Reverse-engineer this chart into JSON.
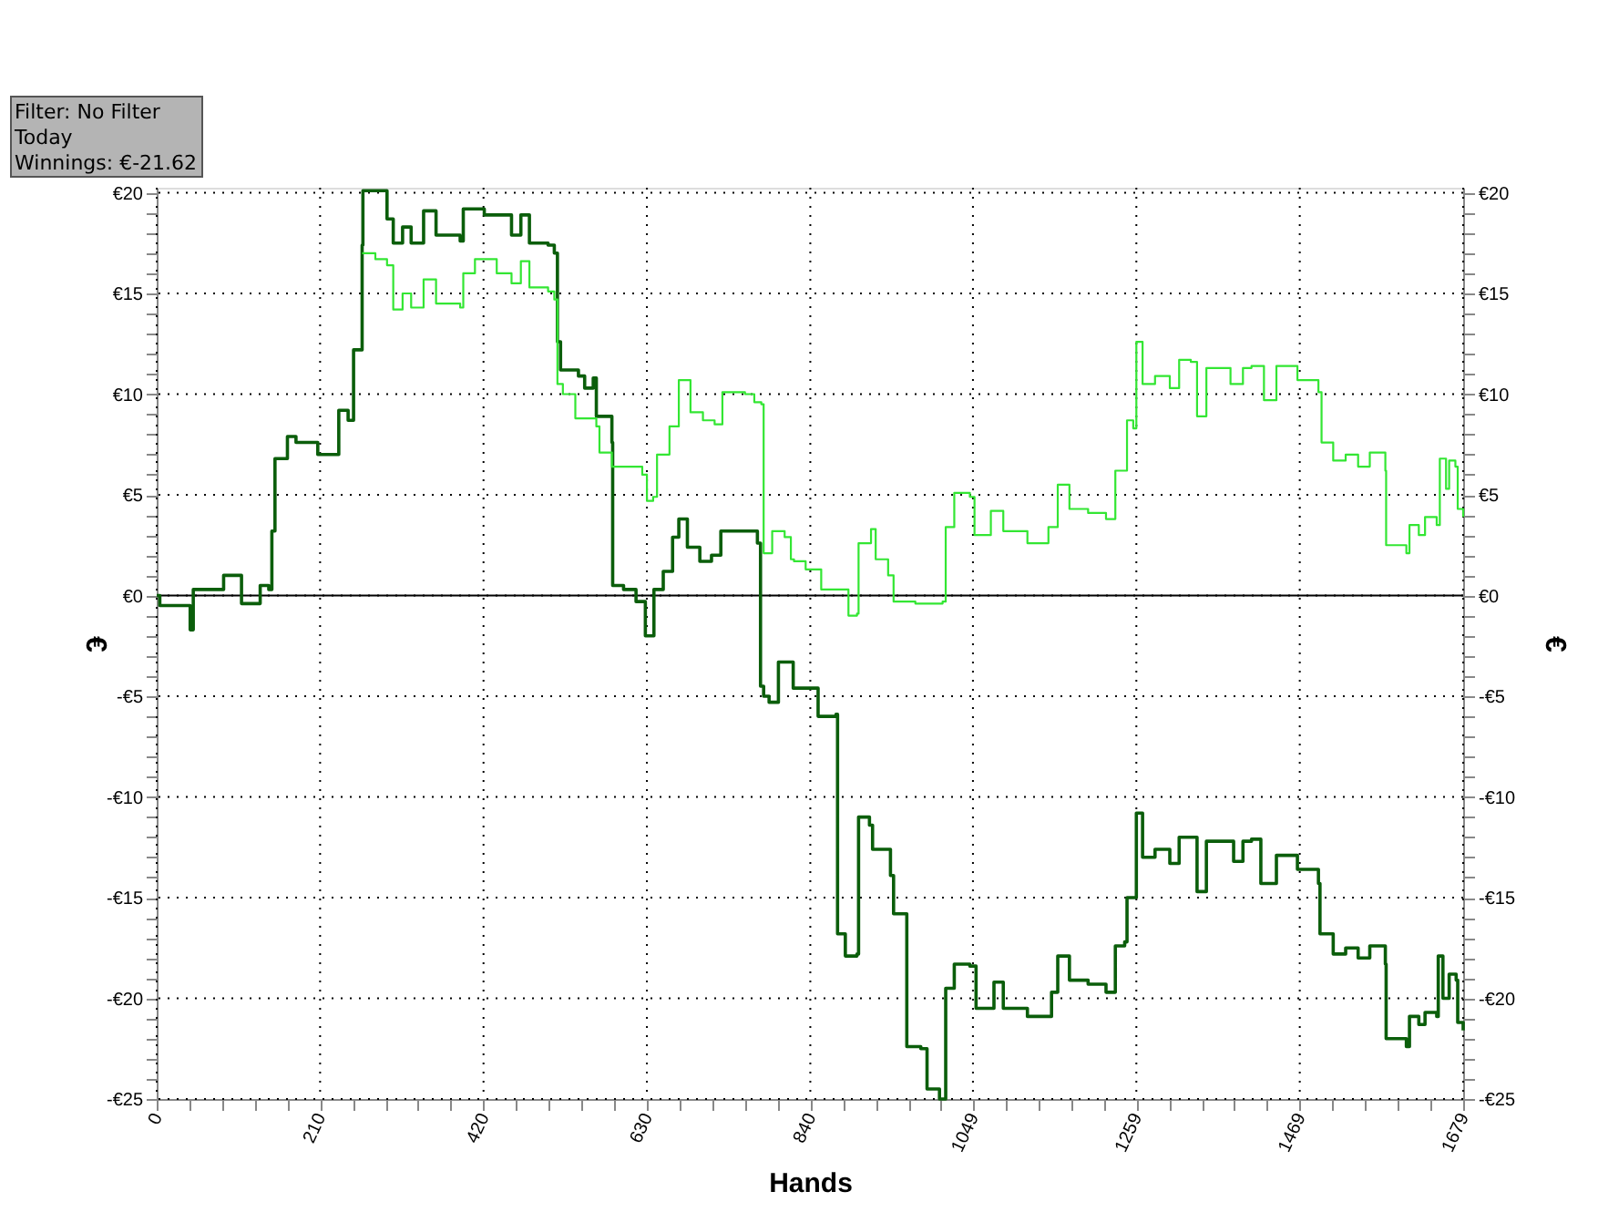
{
  "chart_data": {
    "type": "step",
    "xlabel": "Hands",
    "ylabel": "€",
    "y2label": "€",
    "annotations": [
      "Filter: No Filter",
      "Today",
      "Winnings: €-21.62"
    ],
    "xlim": [
      0,
      1679
    ],
    "ylim": [
      -25,
      20.25
    ],
    "y2lim": [
      -25,
      20.25
    ],
    "xticks": [
      0,
      {
        "value": 42,
        "label": null
      },
      {
        "value": 84,
        "label": null
      },
      {
        "value": 126,
        "label": null
      },
      {
        "value": 168,
        "label": null
      },
      210,
      {
        "value": 252,
        "label": null
      },
      {
        "value": 294,
        "label": null
      },
      {
        "value": 336,
        "label": null
      },
      {
        "value": 378,
        "label": null
      },
      420,
      {
        "value": 462,
        "label": null
      },
      {
        "value": 504,
        "label": null
      },
      {
        "value": 546,
        "label": null
      },
      {
        "value": 588,
        "label": null
      },
      630,
      {
        "value": 672,
        "label": null
      },
      {
        "value": 714,
        "label": null
      },
      {
        "value": 756,
        "label": null
      },
      {
        "value": 798,
        "label": null
      },
      840,
      {
        "value": 882,
        "label": null
      },
      {
        "value": 924,
        "label": null
      },
      {
        "value": 966,
        "label": null
      },
      {
        "value": 1007,
        "label": null
      },
      1049,
      {
        "value": 1091,
        "label": null
      },
      {
        "value": 1133,
        "label": null
      },
      {
        "value": 1175,
        "label": null
      },
      {
        "value": 1217,
        "label": null
      },
      1259,
      {
        "value": 1301,
        "label": null
      },
      {
        "value": 1343,
        "label": null
      },
      {
        "value": 1385,
        "label": null
      },
      {
        "value": 1427,
        "label": null
      },
      1469,
      {
        "value": 1511,
        "label": null
      },
      {
        "value": 1553,
        "label": null
      },
      {
        "value": 1595,
        "label": null
      },
      {
        "value": 1637,
        "label": null
      },
      1679
    ],
    "yticks": [
      {
        "value": -25,
        "label": "-€25"
      },
      {
        "value": -24,
        "label": null
      },
      {
        "value": -23,
        "label": null
      },
      {
        "value": -22,
        "label": null
      },
      {
        "value": -21,
        "label": null
      },
      {
        "value": -20,
        "label": "-€20"
      },
      {
        "value": -19,
        "label": null
      },
      {
        "value": -18,
        "label": null
      },
      {
        "value": -17,
        "label": null
      },
      {
        "value": -16,
        "label": null
      },
      {
        "value": -15,
        "label": "-€15"
      },
      {
        "value": -14,
        "label": null
      },
      {
        "value": -13,
        "label": null
      },
      {
        "value": -12,
        "label": null
      },
      {
        "value": -11,
        "label": null
      },
      {
        "value": -10,
        "label": "-€10"
      },
      {
        "value": -9,
        "label": null
      },
      {
        "value": -8,
        "label": null
      },
      {
        "value": -7,
        "label": null
      },
      {
        "value": -6,
        "label": null
      },
      {
        "value": -5,
        "label": "-€5"
      },
      {
        "value": -4,
        "label": null
      },
      {
        "value": -3,
        "label": null
      },
      {
        "value": -2,
        "label": null
      },
      {
        "value": -1,
        "label": null
      },
      {
        "value": 0,
        "label": "€0"
      },
      {
        "value": 1,
        "label": null
      },
      {
        "value": 2,
        "label": null
      },
      {
        "value": 3,
        "label": null
      },
      {
        "value": 4,
        "label": null
      },
      {
        "value": 5,
        "label": "€5"
      },
      {
        "value": 6,
        "label": null
      },
      {
        "value": 7,
        "label": null
      },
      {
        "value": 8,
        "label": null
      },
      {
        "value": 9,
        "label": null
      },
      {
        "value": 10,
        "label": "€10"
      },
      {
        "value": 11,
        "label": null
      },
      {
        "value": 12,
        "label": null
      },
      {
        "value": 13,
        "label": null
      },
      {
        "value": 14,
        "label": null
      },
      {
        "value": 15,
        "label": "€15"
      },
      {
        "value": 16,
        "label": null
      },
      {
        "value": 17,
        "label": null
      },
      {
        "value": 18,
        "label": null
      },
      {
        "value": 19,
        "label": null
      },
      {
        "value": 20,
        "label": "€20"
      }
    ],
    "y2ticks": [
      {
        "value": -25,
        "label": "-€25"
      },
      {
        "value": -24,
        "label": null
      },
      {
        "value": -23,
        "label": null
      },
      {
        "value": -22,
        "label": null
      },
      {
        "value": -21,
        "label": null
      },
      {
        "value": -20,
        "label": "-€20"
      },
      {
        "value": -19,
        "label": null
      },
      {
        "value": -18,
        "label": null
      },
      {
        "value": -17,
        "label": null
      },
      {
        "value": -16,
        "label": null
      },
      {
        "value": -15,
        "label": "-€15"
      },
      {
        "value": -14,
        "label": null
      },
      {
        "value": -13,
        "label": null
      },
      {
        "value": -12,
        "label": null
      },
      {
        "value": -11,
        "label": null
      },
      {
        "value": -10,
        "label": "-€10"
      },
      {
        "value": -9,
        "label": null
      },
      {
        "value": -8,
        "label": null
      },
      {
        "value": -7,
        "label": null
      },
      {
        "value": -6,
        "label": null
      },
      {
        "value": -5,
        "label": "-€5"
      },
      {
        "value": -4,
        "label": null
      },
      {
        "value": -3,
        "label": null
      },
      {
        "value": -2,
        "label": null
      },
      {
        "value": -1,
        "label": null
      },
      {
        "value": 0,
        "label": "€0"
      },
      {
        "value": 1,
        "label": null
      },
      {
        "value": 2,
        "label": null
      },
      {
        "value": 3,
        "label": null
      },
      {
        "value": 4,
        "label": null
      },
      {
        "value": 5,
        "label": "€5"
      },
      {
        "value": 6,
        "label": null
      },
      {
        "value": 7,
        "label": null
      },
      {
        "value": 8,
        "label": null
      },
      {
        "value": 9,
        "label": null
      },
      {
        "value": 10,
        "label": "€10"
      },
      {
        "value": 11,
        "label": null
      },
      {
        "value": 12,
        "label": null
      },
      {
        "value": 13,
        "label": null
      },
      {
        "value": 14,
        "label": null
      },
      {
        "value": 15,
        "label": "€15"
      },
      {
        "value": 16,
        "label": null
      },
      {
        "value": 17,
        "label": null
      },
      {
        "value": 18,
        "label": null
      },
      {
        "value": 19,
        "label": null
      },
      {
        "value": 20,
        "label": "€20"
      }
    ],
    "grid": true,
    "ref_lines": [
      {
        "axis": "y",
        "value": 0,
        "color": "#000000"
      }
    ],
    "series": [
      {
        "color": "#0b5e0b",
        "x": [
          0,
          4,
          39,
          43,
          47,
          82,
          86,
          109,
          133,
          144,
          148,
          152,
          168,
          179,
          207,
          230,
          234,
          246,
          253,
          261,
          264,
          265,
          288,
          296,
          304,
          316,
          327,
          343,
          359,
          390,
          394,
          421,
          456,
          468,
          479,
          503,
          511,
          515,
          519,
          542,
          550,
          561,
          565,
          585,
          586,
          600,
          616,
          628,
          635,
          639,
          651,
          663,
          671,
          682,
          698,
          713,
          725,
          748,
          772,
          776,
          780,
          787,
          799,
          818,
          850,
          873,
          875,
          885,
          900,
          902,
          916,
          920,
          943,
          947,
          963,
          964,
          982,
          990,
          1006,
          1014,
          1025,
          1045,
          1053,
          1076,
          1088,
          1119,
          1150,
          1158,
          1173,
          1197,
          1220,
          1232,
          1244,
          1247,
          1255,
          1259,
          1267,
          1283,
          1302,
          1314,
          1329,
          1337,
          1349,
          1384,
          1396,
          1407,
          1419,
          1439,
          1466,
          1493,
          1495,
          1512,
          1528,
          1544,
          1559,
          1579,
          1580,
          1606,
          1610,
          1622,
          1630,
          1645,
          1647,
          1653,
          1661,
          1670,
          1672,
          1679
        ],
        "values": [
          0,
          -0.5,
          -0.5,
          -1.7,
          0.3,
          0.3,
          1.0,
          -0.4,
          0.5,
          0.3,
          3.2,
          6.8,
          7.9,
          7.6,
          7.0,
          7.0,
          9.2,
          8.7,
          12.2,
          12.2,
          17.4,
          20.1,
          20.1,
          18.7,
          17.5,
          18.3,
          17.5,
          19.1,
          17.9,
          17.6,
          19.2,
          18.9,
          17.9,
          18.9,
          17.5,
          17.4,
          17.0,
          12.6,
          11.2,
          10.9,
          10.3,
          10.8,
          8.9,
          7.6,
          0.5,
          0.3,
          -0.3,
          -2.0,
          -2.0,
          0.3,
          1.2,
          2.9,
          3.8,
          2.4,
          1.7,
          2.0,
          3.2,
          3.2,
          2.6,
          -4.5,
          -5.0,
          -5.3,
          -3.3,
          -4.6,
          -6.0,
          -5.9,
          -16.8,
          -17.9,
          -17.8,
          -11.0,
          -11.4,
          -12.6,
          -13.9,
          -15.8,
          -15.8,
          -22.4,
          -22.5,
          -24.5,
          -25.0,
          -19.5,
          -18.3,
          -18.4,
          -20.5,
          -19.2,
          -20.5,
          -20.9,
          -19.7,
          -17.9,
          -19.1,
          -19.3,
          -19.7,
          -17.4,
          -17.2,
          -15.0,
          -15.0,
          -10.8,
          -13.0,
          -12.6,
          -13.3,
          -12.0,
          -12.0,
          -14.7,
          -12.2,
          -13.2,
          -12.2,
          -12.1,
          -14.3,
          -12.9,
          -13.6,
          -14.3,
          -16.8,
          -17.8,
          -17.5,
          -18.0,
          -17.4,
          -18.3,
          -22.0,
          -22.4,
          -20.9,
          -21.3,
          -20.7,
          -20.9,
          -17.9,
          -20.0,
          -18.8,
          -19.1,
          -21.2,
          -21.6
        ]
      },
      {
        "color": "#33e633",
        "x": [
          264,
          281,
          296,
          304,
          316,
          327,
          343,
          359,
          390,
          394,
          409,
          437,
          456,
          468,
          479,
          503,
          511,
          515,
          522,
          538,
          565,
          569,
          585,
          624,
          630,
          638,
          643,
          659,
          671,
          686,
          702,
          717,
          727,
          756,
          768,
          777,
          780,
          791,
          807,
          815,
          819,
          834,
          854,
          873,
          889,
          900,
          902,
          916,
          918,
          924,
          940,
          947,
          975,
          1010,
          1014,
          1025,
          1045,
          1051,
          1072,
          1088,
          1119,
          1146,
          1158,
          1170,
          1173,
          1197,
          1220,
          1232,
          1244,
          1247,
          1255,
          1259,
          1267,
          1283,
          1302,
          1314,
          1329,
          1337,
          1349,
          1380,
          1396,
          1407,
          1423,
          1439,
          1466,
          1493,
          1497,
          1512,
          1528,
          1544,
          1559,
          1579,
          1580,
          1606,
          1610,
          1622,
          1630,
          1645,
          1649,
          1657,
          1661,
          1669,
          1672,
          1679
        ],
        "values": [
          17.0,
          16.7,
          16.4,
          14.2,
          15.0,
          14.3,
          15.7,
          14.5,
          14.3,
          16.0,
          16.7,
          16.0,
          15.5,
          16.6,
          15.3,
          15.1,
          14.7,
          10.5,
          10.0,
          8.8,
          8.4,
          7.1,
          6.4,
          6.0,
          4.7,
          4.9,
          7.0,
          8.4,
          10.7,
          9.1,
          8.7,
          8.5,
          10.1,
          10.0,
          9.6,
          9.5,
          2.1,
          3.2,
          2.9,
          1.8,
          1.7,
          1.3,
          0.3,
          0.3,
          -1.0,
          -0.9,
          2.6,
          2.6,
          3.3,
          1.8,
          1.0,
          -0.3,
          -0.4,
          -0.3,
          3.4,
          5.1,
          4.9,
          3.0,
          4.2,
          3.2,
          2.6,
          3.4,
          5.5,
          5.5,
          4.3,
          4.1,
          3.8,
          6.2,
          6.2,
          8.7,
          8.3,
          12.6,
          10.5,
          10.9,
          10.3,
          11.7,
          11.6,
          8.9,
          11.3,
          10.5,
          11.3,
          11.4,
          9.7,
          11.4,
          10.7,
          10.1,
          7.6,
          6.7,
          7.0,
          6.4,
          7.1,
          6.2,
          2.5,
          2.1,
          3.5,
          3.0,
          3.9,
          3.5,
          6.8,
          5.3,
          6.7,
          6.4,
          4.3,
          3.9
        ]
      }
    ]
  }
}
